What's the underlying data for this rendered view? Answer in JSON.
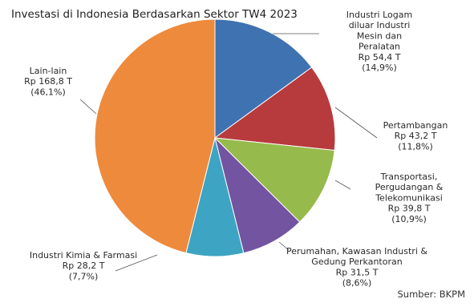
{
  "chart_data": {
    "type": "pie",
    "title": "Investasi di Indonesia Berdasarkan Sektor TW4 2023",
    "source": "Sumber: BKPM",
    "slices": [
      {
        "label_lines": [
          "Industri Logam",
          "diluar Industri",
          "Mesin dan",
          "Peralatan"
        ],
        "value_text": "Rp 54,4  T",
        "percent_text": "(14,9%)",
        "value": 54.4,
        "percent": 14.9,
        "color": "#3F72B1"
      },
      {
        "label_lines": [
          "Pertambangan"
        ],
        "value_text": "Rp 43,2  T",
        "percent_text": "(11,8%)",
        "value": 43.2,
        "percent": 11.8,
        "color": "#B73B3D"
      },
      {
        "label_lines": [
          "Transportasi,",
          "Pergudangan &",
          "Telekomunikasi"
        ],
        "value_text": "Rp 39,8  T",
        "percent_text": "(10,9%)",
        "value": 39.8,
        "percent": 10.9,
        "color": "#97BA4C"
      },
      {
        "label_lines": [
          "Perumahan, Kawasan Industri &",
          "Gedung Perkantoran"
        ],
        "value_text": "Rp 31,5  T",
        "percent_text": "(8,6%)",
        "value": 31.5,
        "percent": 8.6,
        "color": "#7254A0"
      },
      {
        "label_lines": [
          "Industri Kimia & Farmasi"
        ],
        "value_text": "Rp 28,2  T",
        "percent_text": "(7,7%)",
        "value": 28.2,
        "percent": 7.7,
        "color": "#3DA4C3"
      },
      {
        "label_lines": [
          "Lain-lain"
        ],
        "value_text": "Rp 168,8  T",
        "percent_text": "(46,1%)",
        "value": 168.8,
        "percent": 46.1,
        "color": "#EE8A3C"
      }
    ]
  }
}
